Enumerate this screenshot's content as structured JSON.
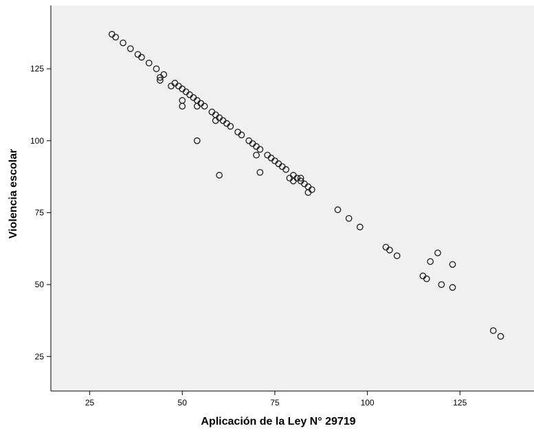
{
  "chart_data": {
    "type": "scatter",
    "title": "",
    "xlabel": "Aplicación de la Ley N° 29719",
    "ylabel": "Violencia escolar",
    "xlim": [
      14.5,
      145
    ],
    "ylim": [
      13,
      147
    ],
    "x_ticks": [
      25,
      50,
      75,
      100,
      125
    ],
    "y_ticks": [
      25,
      50,
      75,
      100,
      125
    ],
    "x_tick_labels": [
      "25",
      "50",
      "75",
      "100",
      "125"
    ],
    "y_tick_labels": [
      "25",
      "50",
      "75",
      "100",
      "125"
    ],
    "grid": false,
    "legend": "none",
    "colors": {
      "plot_background": "#f0f0f0",
      "marker_stroke": "#1a1a1a",
      "axis": "#000000"
    },
    "points": [
      {
        "x": 31,
        "y": 137
      },
      {
        "x": 32,
        "y": 136
      },
      {
        "x": 34,
        "y": 134
      },
      {
        "x": 36,
        "y": 132
      },
      {
        "x": 38,
        "y": 130
      },
      {
        "x": 39,
        "y": 129
      },
      {
        "x": 41,
        "y": 127
      },
      {
        "x": 43,
        "y": 125
      },
      {
        "x": 44,
        "y": 122
      },
      {
        "x": 44,
        "y": 121
      },
      {
        "x": 45,
        "y": 123
      },
      {
        "x": 47,
        "y": 119
      },
      {
        "x": 48,
        "y": 120
      },
      {
        "x": 49,
        "y": 119
      },
      {
        "x": 50,
        "y": 118
      },
      {
        "x": 51,
        "y": 117
      },
      {
        "x": 52,
        "y": 116
      },
      {
        "x": 53,
        "y": 115
      },
      {
        "x": 54,
        "y": 114
      },
      {
        "x": 55,
        "y": 113
      },
      {
        "x": 56,
        "y": 112
      },
      {
        "x": 54,
        "y": 112
      },
      {
        "x": 50,
        "y": 114
      },
      {
        "x": 50,
        "y": 112
      },
      {
        "x": 58,
        "y": 110
      },
      {
        "x": 59,
        "y": 109
      },
      {
        "x": 60,
        "y": 108
      },
      {
        "x": 61,
        "y": 107
      },
      {
        "x": 62,
        "y": 106
      },
      {
        "x": 63,
        "y": 105
      },
      {
        "x": 59,
        "y": 107
      },
      {
        "x": 65,
        "y": 103
      },
      {
        "x": 66,
        "y": 102
      },
      {
        "x": 68,
        "y": 100
      },
      {
        "x": 69,
        "y": 99
      },
      {
        "x": 70,
        "y": 98
      },
      {
        "x": 71,
        "y": 97
      },
      {
        "x": 70,
        "y": 95
      },
      {
        "x": 73,
        "y": 95
      },
      {
        "x": 74,
        "y": 94
      },
      {
        "x": 75,
        "y": 93
      },
      {
        "x": 76,
        "y": 92
      },
      {
        "x": 77,
        "y": 91
      },
      {
        "x": 78,
        "y": 90
      },
      {
        "x": 79,
        "y": 87
      },
      {
        "x": 80,
        "y": 88
      },
      {
        "x": 80,
        "y": 86
      },
      {
        "x": 81,
        "y": 87
      },
      {
        "x": 82,
        "y": 87
      },
      {
        "x": 82,
        "y": 86
      },
      {
        "x": 83,
        "y": 85
      },
      {
        "x": 84,
        "y": 84
      },
      {
        "x": 84,
        "y": 82
      },
      {
        "x": 85,
        "y": 83
      },
      {
        "x": 54,
        "y": 100
      },
      {
        "x": 60,
        "y": 88
      },
      {
        "x": 71,
        "y": 89
      },
      {
        "x": 92,
        "y": 76
      },
      {
        "x": 95,
        "y": 73
      },
      {
        "x": 98,
        "y": 70
      },
      {
        "x": 105,
        "y": 63
      },
      {
        "x": 106,
        "y": 62
      },
      {
        "x": 108,
        "y": 60
      },
      {
        "x": 115,
        "y": 53
      },
      {
        "x": 116,
        "y": 52
      },
      {
        "x": 117,
        "y": 58
      },
      {
        "x": 119,
        "y": 61
      },
      {
        "x": 120,
        "y": 50
      },
      {
        "x": 123,
        "y": 57
      },
      {
        "x": 123,
        "y": 49
      },
      {
        "x": 134,
        "y": 34
      },
      {
        "x": 136,
        "y": 32
      }
    ]
  }
}
